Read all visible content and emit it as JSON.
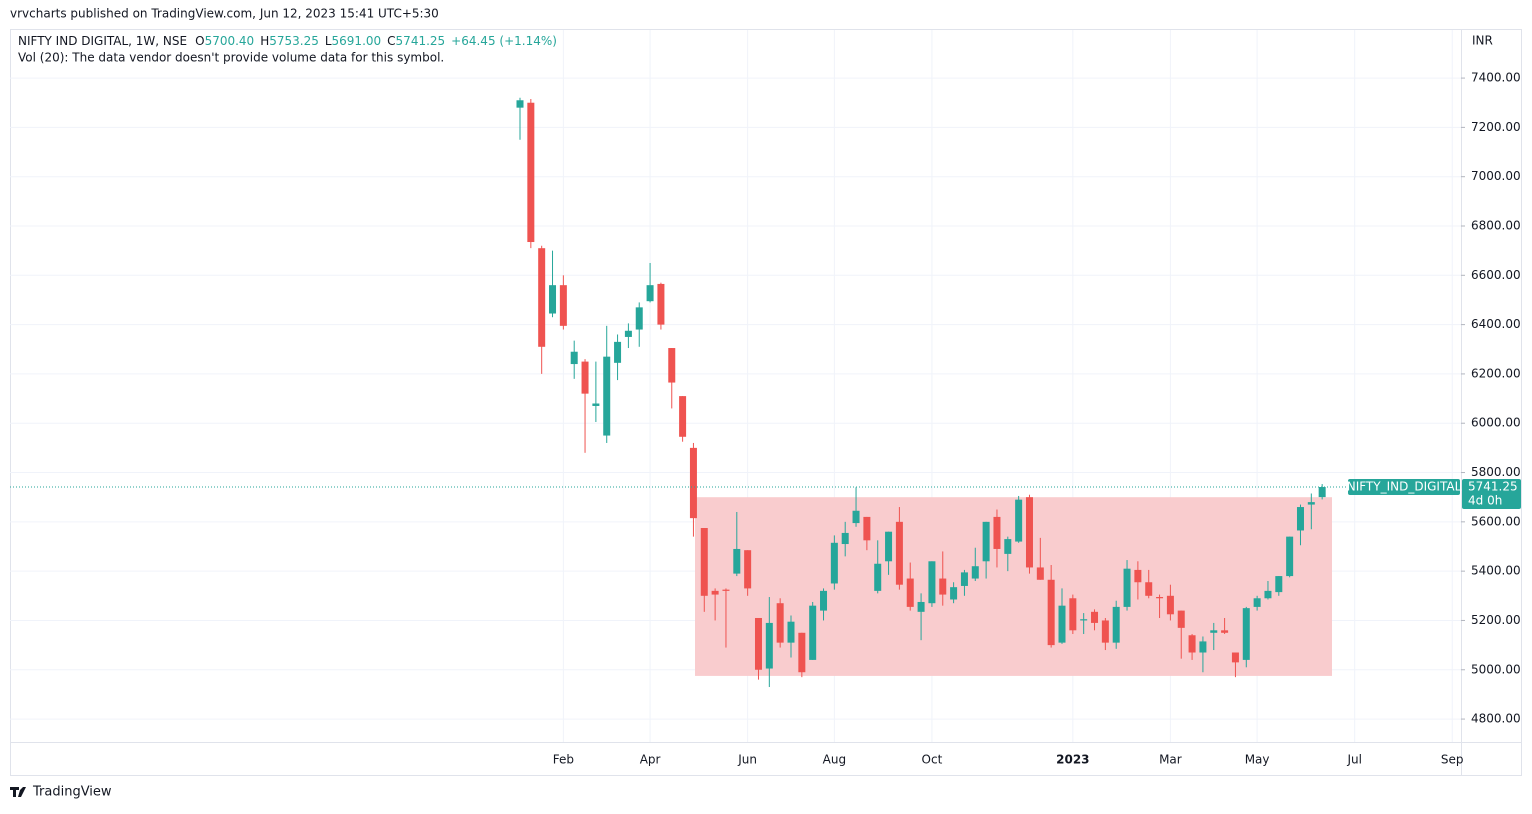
{
  "header": {
    "publisher": "vrvcharts published on TradingView.com, Jun 12, 2023 15:41 UTC+5:30",
    "brand": "TradingView"
  },
  "chart_data": {
    "type": "candlestick",
    "title": "NIFTY IND DIGITAL, 1W, NSE",
    "legend_values": [
      {
        "key": "O",
        "value": "5700.40"
      },
      {
        "key": "H",
        "value": "5753.25"
      },
      {
        "key": "L",
        "value": "5691.00"
      },
      {
        "key": "C",
        "value": "5741.25"
      }
    ],
    "change": "+64.45 (+1.14%)",
    "volume_note": "Vol (20): The data vendor doesn't provide volume data for this symbol.",
    "currency": "INR",
    "up_color": "#26a69a",
    "down_color": "#ef5350",
    "categories": [
      null,
      null,
      null,
      null,
      "Feb",
      null,
      null,
      null,
      null,
      null,
      null,
      null,
      "Apr",
      null,
      null,
      null,
      null,
      null,
      null,
      null,
      null,
      "Jun",
      null,
      null,
      null,
      null,
      null,
      null,
      null,
      "Aug",
      null,
      null,
      null,
      null,
      null,
      null,
      null,
      null,
      "Oct",
      null,
      null,
      null,
      null,
      null,
      null,
      null,
      null,
      null,
      null,
      null,
      null,
      "2023",
      null,
      null,
      null,
      null,
      null,
      null,
      null,
      null,
      "Mar",
      null,
      null,
      null,
      null,
      null,
      null,
      null,
      "May",
      null,
      null,
      null,
      null,
      null,
      null,
      null,
      null,
      "Jul",
      null,
      null,
      null,
      null,
      null,
      null,
      null,
      null,
      "Sep"
    ],
    "open": [
      7280,
      7300,
      6710,
      6445,
      6560,
      6240,
      6250,
      6070,
      5950,
      6245,
      6350,
      6380,
      6495,
      6565,
      6305,
      6110,
      5900,
      5575,
      5320,
      5325,
      5390,
      5485,
      5210,
      5005,
      5270,
      5110,
      5150,
      5040,
      5240,
      5350,
      5510,
      5595,
      5620,
      5320,
      5440,
      5600,
      5370,
      5235,
      5270,
      5370,
      5285,
      5340,
      5370,
      5440,
      5620,
      5470,
      5520,
      5700,
      5415,
      5365,
      5110,
      5290,
      5200,
      5235,
      5200,
      5110,
      5255,
      5405,
      5355,
      5295,
      5300,
      5240,
      5140,
      5070,
      5150,
      5160,
      5070,
      5040,
      5255,
      5290,
      5315,
      5380,
      5565,
      5670,
      5700.4,
      null,
      null,
      null,
      null,
      null,
      null,
      null,
      null,
      null,
      null,
      null,
      null
    ],
    "high": [
      7320,
      7315,
      6720,
      6700,
      6600,
      6335,
      6260,
      6250,
      6395,
      6360,
      6405,
      6490,
      6650,
      6570,
      6305,
      6110,
      5920,
      5575,
      5330,
      5330,
      5640,
      5485,
      5210,
      5295,
      5290,
      5220,
      5150,
      5275,
      5330,
      5545,
      5600,
      5740,
      5620,
      5525,
      5560,
      5660,
      5435,
      5310,
      5440,
      5480,
      5355,
      5405,
      5495,
      5600,
      5650,
      5540,
      5705,
      5710,
      5535,
      5425,
      5330,
      5305,
      5230,
      5245,
      5210,
      5280,
      5445,
      5440,
      5405,
      5305,
      5345,
      5240,
      5145,
      5135,
      5190,
      5210,
      5070,
      5255,
      5300,
      5360,
      5380,
      5540,
      5670,
      5715,
      5753.25,
      null,
      null,
      null,
      null,
      null,
      null,
      null,
      null,
      null,
      null,
      null,
      null
    ],
    "low": [
      7150,
      6710,
      6200,
      6430,
      6380,
      6180,
      5880,
      6005,
      5920,
      6175,
      6305,
      6310,
      6490,
      6380,
      6060,
      5925,
      5540,
      5235,
      5200,
      5090,
      5380,
      5300,
      4960,
      4930,
      5090,
      5050,
      4970,
      5040,
      5200,
      5325,
      5460,
      5580,
      5485,
      5310,
      5385,
      5325,
      5240,
      5120,
      5255,
      5260,
      5270,
      5300,
      5360,
      5370,
      5415,
      5400,
      5515,
      5390,
      5365,
      5090,
      5105,
      5145,
      5145,
      5160,
      5080,
      5085,
      5240,
      5285,
      5290,
      5210,
      5200,
      5045,
      5040,
      4990,
      5080,
      5145,
      4970,
      5010,
      5240,
      5285,
      5300,
      5375,
      5505,
      5570,
      5691,
      null,
      null,
      null,
      null,
      null,
      null,
      null,
      null,
      null,
      null,
      null,
      null
    ],
    "close": [
      7310,
      6735,
      6310,
      6560,
      6395,
      6290,
      6120,
      6080,
      6270,
      6330,
      6375,
      6470,
      6560,
      6400,
      6165,
      5945,
      5615,
      5300,
      5305,
      5320,
      5490,
      5330,
      5000,
      5190,
      5110,
      5195,
      4990,
      5260,
      5320,
      5515,
      5555,
      5645,
      5525,
      5430,
      5560,
      5345,
      5255,
      5275,
      5440,
      5305,
      5335,
      5395,
      5420,
      5600,
      5490,
      5530,
      5690,
      5415,
      5365,
      5100,
      5260,
      5160,
      5205,
      5190,
      5110,
      5255,
      5410,
      5355,
      5300,
      5290,
      5225,
      5170,
      5070,
      5115,
      5160,
      5150,
      5030,
      5250,
      5290,
      5320,
      5380,
      5540,
      5660,
      5680,
      5741.25,
      null,
      null,
      null,
      null,
      null,
      null,
      null,
      null,
      null,
      null,
      null,
      null
    ],
    "ylim": [
      4707,
      7595
    ],
    "yticks": [
      {
        "value": 4800,
        "label": "4800.00"
      },
      {
        "value": 5000,
        "label": "5000.00"
      },
      {
        "value": 5200,
        "label": "5200.00"
      },
      {
        "value": 5400,
        "label": "5400.00"
      },
      {
        "value": 5600,
        "label": "5600.00"
      },
      {
        "value": 5800,
        "label": "5800.00"
      },
      {
        "value": 6000,
        "label": "6000.00"
      },
      {
        "value": 6200,
        "label": "6200.00"
      },
      {
        "value": 6400,
        "label": "6400.00"
      },
      {
        "value": 6600,
        "label": "6600.00"
      },
      {
        "value": 6800,
        "label": "6800.00"
      },
      {
        "value": 7000,
        "label": "7000.00"
      },
      {
        "value": 7200,
        "label": "7200.00"
      },
      {
        "value": 7400,
        "label": "7400.00"
      }
    ],
    "grid": true,
    "zone": {
      "top": 5700,
      "bottom": 4975,
      "color": "#f9c9cb"
    },
    "last_price": 5741.25,
    "price_tag": {
      "symbol": "NIFTY_IND_DIGITAL",
      "countdown": "4d 0h"
    }
  }
}
